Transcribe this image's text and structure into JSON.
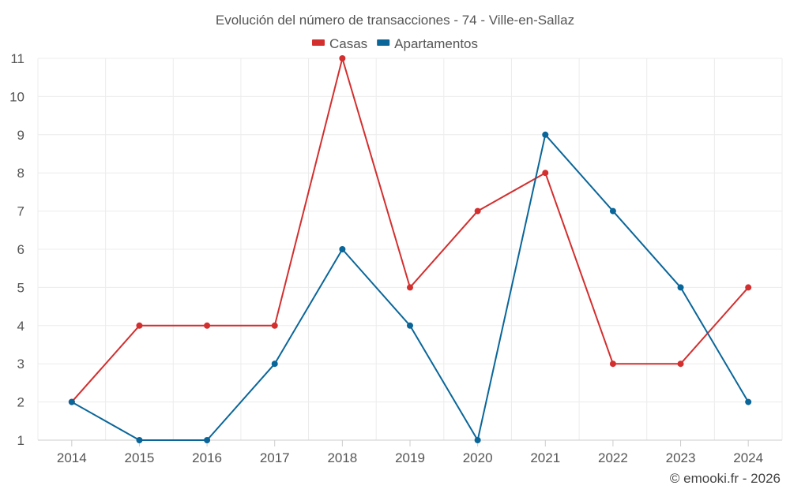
{
  "chart_data": {
    "type": "line",
    "title": "Evolución del número de transacciones - 74 - Ville-en-Sallaz",
    "categories": [
      "2014",
      "2015",
      "2016",
      "2017",
      "2018",
      "2019",
      "2020",
      "2021",
      "2022",
      "2023",
      "2024"
    ],
    "series": [
      {
        "name": "Casas",
        "color": "#d32f2f",
        "values": [
          2,
          4,
          4,
          4,
          11,
          5,
          7,
          8,
          3,
          3,
          5
        ]
      },
      {
        "name": "Apartamentos",
        "color": "#0a6699",
        "values": [
          2,
          1,
          1,
          3,
          6,
          4,
          1,
          9,
          7,
          5,
          2
        ]
      }
    ],
    "ylim": [
      1,
      11
    ],
    "yticks": [
      1,
      2,
      3,
      4,
      5,
      6,
      7,
      8,
      9,
      10,
      11
    ],
    "xlabel": "",
    "ylabel": "",
    "grid": true,
    "legend_position": "top-center"
  },
  "credit": "© emooki.fr - 2026"
}
